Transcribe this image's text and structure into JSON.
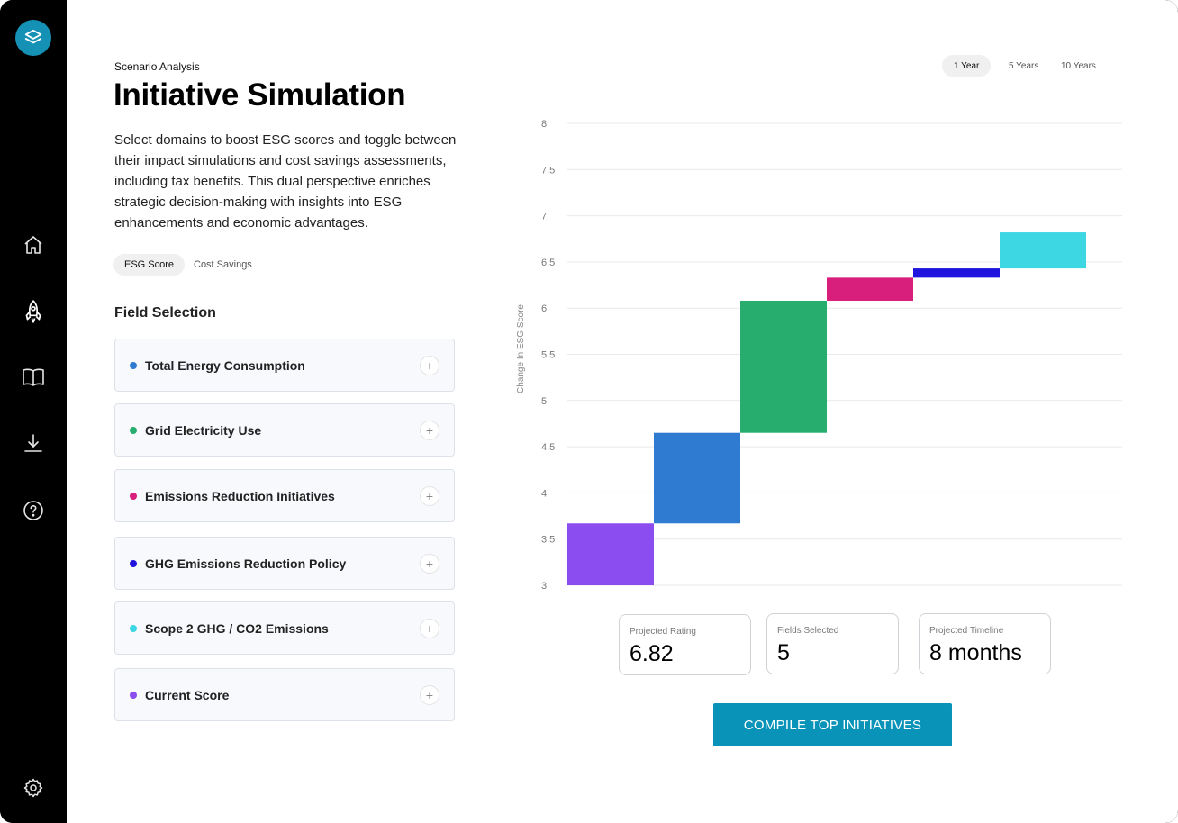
{
  "header": {
    "eyebrow": "Scenario Analysis",
    "title": "Initiative Simulation",
    "description": "Select domains to boost ESG scores and toggle between their impact simulations and cost savings assessments, including tax benefits. This dual perspective enriches strategic decision-making with insights into ESG enhancements and economic advantages."
  },
  "toggle": {
    "options": [
      "ESG Score",
      "Cost Savings"
    ],
    "selected": "ESG Score"
  },
  "field_selection": {
    "title": "Field Selection",
    "items": [
      {
        "label": "Total Energy Consumption",
        "color": "#2f7bd1"
      },
      {
        "label": "Grid Electricity Use",
        "color": "#27ae6e"
      },
      {
        "label": "Emissions Reduction Initiatives",
        "color": "#d81f7c"
      },
      {
        "label": "GHG Emissions Reduction Policy",
        "color": "#2113de"
      },
      {
        "label": "Scope 2 GHG / CO2 Emissions",
        "color": "#3dd6e3"
      },
      {
        "label": "Current Score",
        "color": "#8b4cf0"
      }
    ],
    "add_symbol": "+"
  },
  "periods": {
    "options": [
      "1 Year",
      "5 Years",
      "10 Years"
    ],
    "selected": "1 Year"
  },
  "chart_data": {
    "type": "bar",
    "subtype": "waterfall",
    "title": "",
    "xlabel": "",
    "ylabel": "Change In ESG Score",
    "ylim": [
      3,
      8
    ],
    "yticks": [
      "8",
      "7.5",
      "7",
      "6.5",
      "6",
      "5.5",
      "5",
      "4.5",
      "4",
      "3.5",
      "3"
    ],
    "grid": true,
    "series": [
      {
        "name": "Current Score",
        "start": 3.0,
        "end": 3.67,
        "color": "#8b4cf0"
      },
      {
        "name": "Total Energy Consumption",
        "start": 3.67,
        "end": 4.65,
        "color": "#2f7bd1"
      },
      {
        "name": "Grid Electricity Use",
        "start": 4.65,
        "end": 6.08,
        "color": "#27ae6e"
      },
      {
        "name": "Emissions Reduction Initiatives",
        "start": 6.08,
        "end": 6.33,
        "color": "#d81f7c"
      },
      {
        "name": "GHG Emissions Reduction Policy",
        "start": 6.33,
        "end": 6.43,
        "color": "#2113de"
      },
      {
        "name": "Scope 2 GHG / CO2 Emissions",
        "start": 6.43,
        "end": 6.82,
        "color": "#3dd6e3"
      }
    ]
  },
  "stats": {
    "projected_rating": {
      "caption": "Projected Rating",
      "value": "6.82"
    },
    "fields_selected": {
      "caption": "Fields Selected",
      "value": "5"
    },
    "projected_timeline": {
      "caption": "Projected Timeline",
      "value": "8 months"
    }
  },
  "cta": {
    "label": "COMPILE TOP INITIATIVES"
  },
  "colors": {
    "accent": "#0a93b8",
    "logo": "#1591b5",
    "sidebar": "#000000"
  }
}
